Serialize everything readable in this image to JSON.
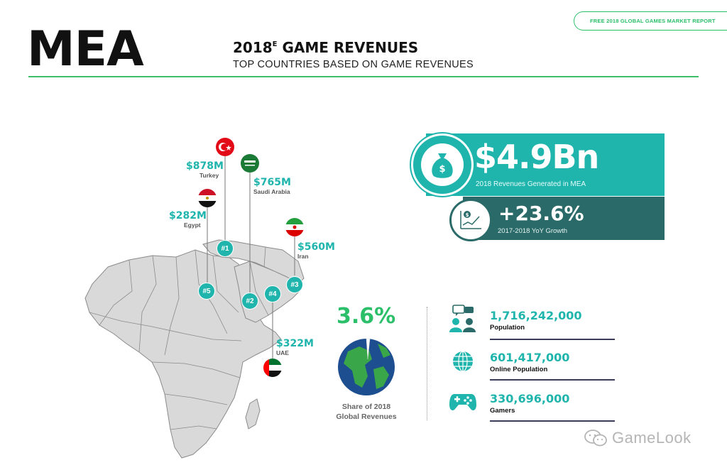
{
  "header": {
    "report_badge": "FREE 2018 GLOBAL GAMES MARKET REPORT",
    "region": "MEA",
    "title_prefix": "2018",
    "title_sup": "E",
    "title_suffix": " GAME REVENUES",
    "subtitle": "TOP COUNTRIES BASED ON GAME REVENUES"
  },
  "countries": [
    {
      "rank": "#1",
      "name": "Turkey",
      "value": "$878M",
      "flag": "turkey-flag"
    },
    {
      "rank": "#2",
      "name": "Saudi Arabia",
      "value": "$765M",
      "flag": "saudi-arabia-flag"
    },
    {
      "rank": "#3",
      "name": "Iran",
      "value": "$560M",
      "flag": "iran-flag"
    },
    {
      "rank": "#4",
      "name": "UAE",
      "value": "$322M",
      "flag": "uae-flag"
    },
    {
      "rank": "#5",
      "name": "Egypt",
      "value": "$282M",
      "flag": "egypt-flag"
    }
  ],
  "revenue": {
    "value": "$4.9Bn",
    "label": "2018 Revenues Generated in MEA",
    "icon": "money-bag-icon"
  },
  "growth": {
    "value": "+23.6%",
    "label": "2017-2018 YoY Growth",
    "icon": "growth-chart-icon"
  },
  "share": {
    "value": "3.6%",
    "label_line1": "Share of 2018",
    "label_line2": "Global Revenues",
    "icon": "globe-pie-icon"
  },
  "stats": [
    {
      "value": "1,716,242,000",
      "label": "Population",
      "icon": "people-chat-icon"
    },
    {
      "value": "601,417,000",
      "label": "Online Population",
      "icon": "globe-icon"
    },
    {
      "value": "330,696,000",
      "label": "Gamers",
      "icon": "gamepad-icon"
    }
  ],
  "watermark": "GameLook",
  "colors": {
    "teal": "#1fb5ad",
    "dark_teal": "#2a6b69",
    "green": "#2bbf6a",
    "map_gray": "#d9d9d9"
  }
}
